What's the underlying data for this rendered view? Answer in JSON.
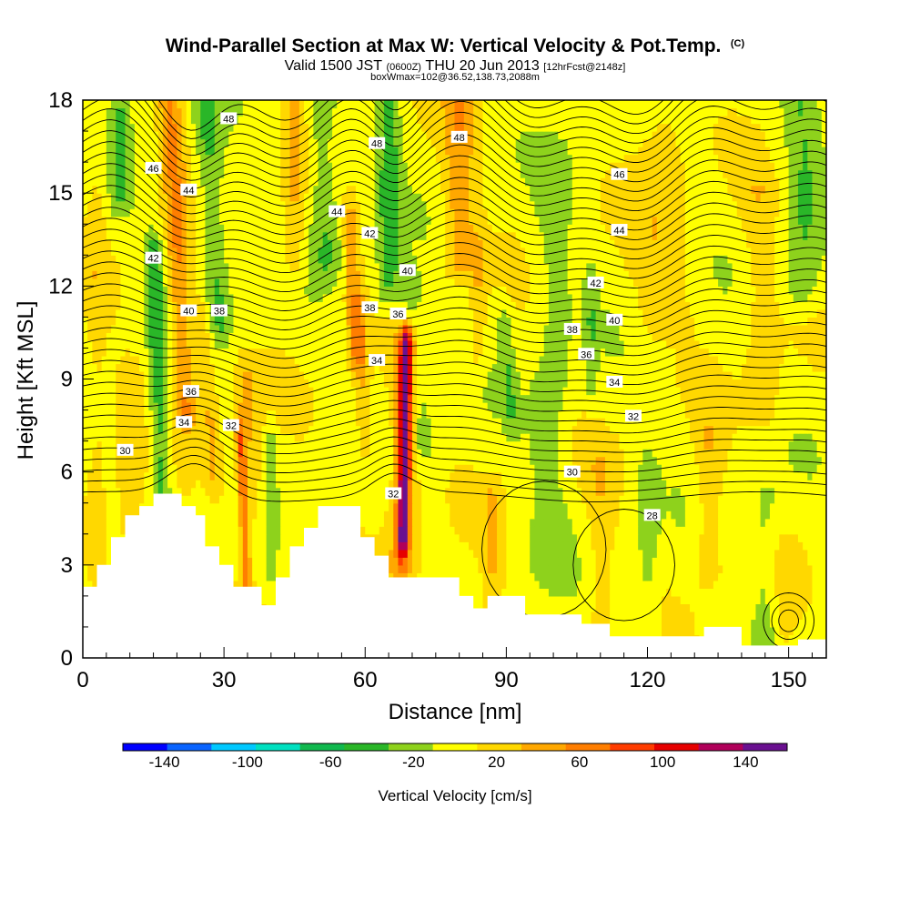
{
  "header": {
    "title": "Wind-Parallel Section at Max W: Vertical Velocity & Pot.Temp.",
    "title_mark": "(C)",
    "valid_prefix": "Valid 1500 JST",
    "valid_utc": "(0600Z)",
    "valid_date": "THU 20 Jun 2013",
    "forecast": "[12hrFcst@2148z]",
    "box_info": "boxWmax=102@36.52,138.73,2088m"
  },
  "chart_data": {
    "type": "heatmap",
    "xlabel": "Distance [nm]",
    "ylabel": "Height [Kft MSL]",
    "xlim": [
      0,
      158
    ],
    "ylim": [
      0,
      18
    ],
    "xticks": [
      0,
      30,
      60,
      90,
      120,
      150
    ],
    "yticks": [
      0,
      3,
      6,
      9,
      12,
      15,
      18
    ],
    "x_minor_step": 5,
    "y_minor_step": 1,
    "colorbar": {
      "label": "Vertical Velocity [cm/s]",
      "range": [
        -160,
        160
      ],
      "step": 20,
      "tick_labels": [
        -140,
        -100,
        -60,
        -20,
        20,
        60,
        100,
        140
      ],
      "colors": [
        "#0000ff",
        "#0a64ff",
        "#00c8ff",
        "#00e0c0",
        "#11b84e",
        "#2ab628",
        "#8ed21c",
        "#ffff00",
        "#ffd800",
        "#ffa800",
        "#ff7e00",
        "#ff3c00",
        "#e60000",
        "#b0005a",
        "#6a1090"
      ]
    },
    "terrain": [
      [
        0,
        2.3
      ],
      [
        3,
        2.3
      ],
      [
        3,
        3.0
      ],
      [
        6,
        3.0
      ],
      [
        6,
        3.9
      ],
      [
        9,
        3.9
      ],
      [
        9,
        4.6
      ],
      [
        12,
        4.6
      ],
      [
        12,
        4.9
      ],
      [
        15,
        4.9
      ],
      [
        15,
        5.3
      ],
      [
        21,
        5.3
      ],
      [
        21,
        4.9
      ],
      [
        24,
        4.9
      ],
      [
        24,
        4.6
      ],
      [
        26,
        4.6
      ],
      [
        26,
        3.6
      ],
      [
        29,
        3.6
      ],
      [
        29,
        3.0
      ],
      [
        32,
        3.0
      ],
      [
        32,
        2.3
      ],
      [
        38,
        2.3
      ],
      [
        38,
        1.7
      ],
      [
        41,
        1.7
      ],
      [
        41,
        2.6
      ],
      [
        44,
        2.6
      ],
      [
        44,
        3.6
      ],
      [
        47,
        3.6
      ],
      [
        47,
        4.2
      ],
      [
        50,
        4.2
      ],
      [
        50,
        4.9
      ],
      [
        59,
        4.9
      ],
      [
        59,
        3.9
      ],
      [
        62,
        3.9
      ],
      [
        62,
        3.3
      ],
      [
        65,
        3.3
      ],
      [
        65,
        2.6
      ],
      [
        80,
        2.6
      ],
      [
        80,
        2.0
      ],
      [
        83,
        2.0
      ],
      [
        83,
        1.6
      ],
      [
        86,
        1.6
      ],
      [
        86,
        2.0
      ],
      [
        94,
        2.0
      ],
      [
        94,
        1.4
      ],
      [
        106,
        1.4
      ],
      [
        106,
        1.1
      ],
      [
        112,
        1.1
      ],
      [
        112,
        0.7
      ],
      [
        132,
        0.7
      ],
      [
        132,
        1.0
      ],
      [
        140,
        1.0
      ],
      [
        140,
        0.4
      ],
      [
        152,
        0.4
      ],
      [
        152,
        0.6
      ],
      [
        158,
        0.6
      ]
    ],
    "w_field": {
      "bands": [
        {
          "x": 22,
          "y0": 8,
          "y1": 18,
          "w": 2.5,
          "slope": -0.35,
          "v": 50
        },
        {
          "x": 28,
          "y0": 6,
          "y1": 11,
          "w": 1.8,
          "slope": -0.5,
          "v": 30
        },
        {
          "x": 35,
          "y0": 2,
          "y1": 7,
          "w": 1.0,
          "slope": -0.3,
          "v": 60
        },
        {
          "x": 36,
          "y0": 5,
          "y1": 9,
          "w": 2.5,
          "slope": -0.3,
          "v": 30
        },
        {
          "x": 58,
          "y0": 10,
          "y1": 14,
          "w": 1.8,
          "slope": -0.3,
          "v": 40
        },
        {
          "x": 60,
          "y0": 7,
          "y1": 11,
          "w": 1.8,
          "slope": -0.3,
          "v": 30
        },
        {
          "x": 68,
          "y0": 4,
          "y1": 10,
          "w": 1.3,
          "slope": 0.12,
          "v": 110
        },
        {
          "x": 68,
          "y0": 3,
          "y1": 10,
          "w": 3.2,
          "slope": 0.12,
          "v": 40
        },
        {
          "x": 80,
          "y0": 13,
          "y1": 19,
          "w": 3.5,
          "slope": 0,
          "v": 40
        },
        {
          "x": 45,
          "y0": 13,
          "y1": 19,
          "w": 2.5,
          "slope": 0,
          "v": 30
        },
        {
          "x": 84,
          "y0": 10,
          "y1": 13,
          "w": 1.5,
          "slope": 0,
          "v": 25
        },
        {
          "x": 123,
          "y0": 11,
          "y1": 17,
          "w": 6,
          "slope": 0,
          "v": 20
        },
        {
          "x": 133,
          "y0": 3,
          "y1": 7,
          "w": 3,
          "slope": 0,
          "v": 25
        },
        {
          "x": 145,
          "y0": 8,
          "y1": 15,
          "w": 4,
          "slope": -0.2,
          "v": 20
        },
        {
          "x": 87,
          "y0": 1,
          "y1": 5,
          "w": 2,
          "slope": 0,
          "v": 25
        },
        {
          "x": 110,
          "y0": 1,
          "y1": 6,
          "w": 3,
          "slope": 0,
          "v": 20
        },
        {
          "x": 149,
          "y0": 1,
          "y1": 3,
          "w": 2,
          "slope": 0,
          "v": 15
        },
        {
          "x": 10,
          "y0": 1,
          "y1": 9,
          "w": 3,
          "slope": 0,
          "v": 20
        },
        {
          "x": 3,
          "y0": 3,
          "y1": 16,
          "w": 2,
          "slope": 0,
          "v": 15
        }
      ],
      "down_bands": [
        {
          "x": 17,
          "y0": 4,
          "y1": 13,
          "w": 2,
          "slope": -0.2,
          "v": -45
        },
        {
          "x": 29,
          "y0": 11,
          "y1": 19,
          "w": 2.8,
          "slope": -0.4,
          "v": -35
        },
        {
          "x": 40,
          "y0": 3,
          "y1": 7,
          "w": 1,
          "slope": 0,
          "v": -25
        },
        {
          "x": 52,
          "y0": 13,
          "y1": 19,
          "w": 3.5,
          "slope": -0.3,
          "v": -30
        },
        {
          "x": 65,
          "y0": 12,
          "y1": 19,
          "w": 2.5,
          "slope": 0,
          "v": -40
        },
        {
          "x": 72,
          "y0": 7,
          "y1": 12,
          "w": 2.5,
          "slope": -0.5,
          "v": -30
        },
        {
          "x": 91,
          "y0": 8,
          "y1": 11,
          "w": 1.5,
          "slope": -0.5,
          "v": -25
        },
        {
          "x": 99,
          "y0": 3,
          "y1": 8,
          "w": 4,
          "slope": 0,
          "v": -20
        },
        {
          "x": 108,
          "y0": 9,
          "y1": 12,
          "w": 1.2,
          "slope": 0,
          "v": -25
        },
        {
          "x": 120,
          "y0": 1,
          "y1": 6,
          "w": 2.5,
          "slope": 0,
          "v": -20
        },
        {
          "x": 145,
          "y0": 1,
          "y1": 5,
          "w": 3,
          "slope": 0,
          "v": -20
        },
        {
          "x": 153,
          "y0": 12,
          "y1": 18,
          "w": 4,
          "slope": 0,
          "v": -30
        },
        {
          "x": 8,
          "y0": 15,
          "y1": 18,
          "w": 2,
          "slope": 0,
          "v": -30
        },
        {
          "x": 100,
          "y0": 9,
          "y1": 16,
          "w": 4,
          "slope": 0,
          "v": -20
        }
      ],
      "base": -8
    },
    "theta_contours": {
      "min": 28,
      "max": 48,
      "step": 0.5,
      "labels": [
        {
          "text": "48",
          "x": 31,
          "y": 17.4
        },
        {
          "text": "48",
          "x": 62.5,
          "y": 16.6
        },
        {
          "text": "48",
          "x": 80,
          "y": 16.8
        },
        {
          "text": "46",
          "x": 15,
          "y": 15.8
        },
        {
          "text": "46",
          "x": 114,
          "y": 15.6
        },
        {
          "text": "44",
          "x": 22.5,
          "y": 15.1
        },
        {
          "text": "44",
          "x": 54,
          "y": 14.4
        },
        {
          "text": "44",
          "x": 114,
          "y": 13.8
        },
        {
          "text": "42",
          "x": 15,
          "y": 12.9
        },
        {
          "text": "42",
          "x": 61,
          "y": 13.7
        },
        {
          "text": "42",
          "x": 109,
          "y": 12.1
        },
        {
          "text": "40",
          "x": 22.5,
          "y": 11.2
        },
        {
          "text": "40",
          "x": 69,
          "y": 12.5
        },
        {
          "text": "40",
          "x": 113,
          "y": 10.9
        },
        {
          "text": "38",
          "x": 29,
          "y": 11.2
        },
        {
          "text": "38",
          "x": 61,
          "y": 11.3
        },
        {
          "text": "38",
          "x": 104,
          "y": 10.6
        },
        {
          "text": "36",
          "x": 23,
          "y": 8.6
        },
        {
          "text": "36",
          "x": 67,
          "y": 11.1
        },
        {
          "text": "36",
          "x": 107,
          "y": 9.8
        },
        {
          "text": "34",
          "x": 21.5,
          "y": 7.6
        },
        {
          "text": "34",
          "x": 62.5,
          "y": 9.6
        },
        {
          "text": "34",
          "x": 113,
          "y": 8.9
        },
        {
          "text": "32",
          "x": 31.5,
          "y": 7.5
        },
        {
          "text": "32",
          "x": 66,
          "y": 5.3
        },
        {
          "text": "32",
          "x": 117,
          "y": 7.8
        },
        {
          "text": "30",
          "x": 9,
          "y": 6.7
        },
        {
          "text": "30",
          "x": 104,
          "y": 6.0
        },
        {
          "text": "28",
          "x": 121,
          "y": 4.6
        }
      ]
    }
  }
}
